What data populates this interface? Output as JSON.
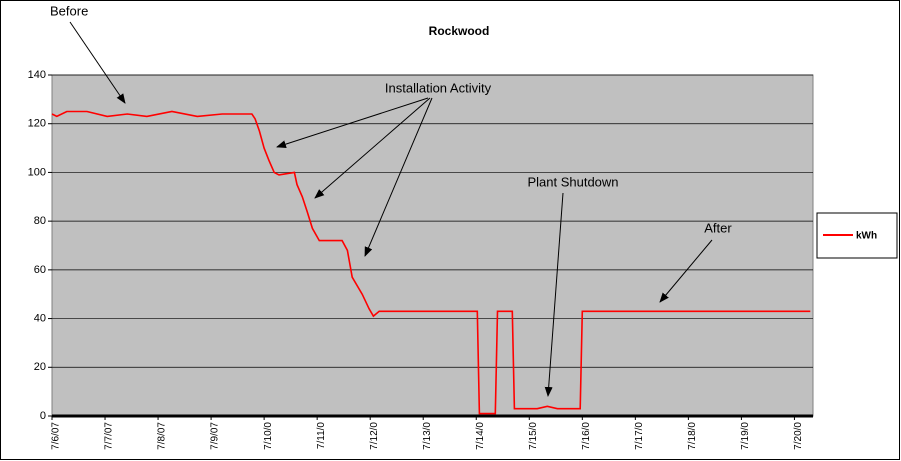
{
  "chart_data": {
    "type": "line",
    "title": "Rockwood",
    "annotations": [
      "Before",
      "Installation Activity",
      "Plant Shutdown",
      "After"
    ],
    "x": [
      0,
      0.09,
      0.28,
      0.66,
      1.04,
      1.42,
      1.79,
      2.26,
      2.74,
      3.21,
      3.77,
      3.83,
      3.91,
      4.0,
      4.09,
      4.19,
      4.28,
      4.57,
      4.62,
      4.72,
      4.81,
      4.91,
      5.04,
      5.47,
      5.57,
      5.66,
      5.85,
      5.98,
      6.06,
      6.17,
      8.02,
      8.06,
      8.36,
      8.4,
      8.68,
      8.72,
      9.15,
      9.34,
      9.53,
      9.96,
      10.0,
      14.3
    ],
    "series": [
      {
        "name": "kWh",
        "color": "#ff0000",
        "values": [
          124,
          123,
          125,
          125,
          123,
          124,
          123,
          125,
          123,
          124,
          124,
          122,
          117,
          110,
          105,
          100,
          99,
          100,
          95,
          90,
          84,
          77,
          72,
          72,
          68,
          57,
          50,
          44,
          41,
          43,
          43,
          1,
          1,
          43,
          43,
          3,
          3,
          4,
          3,
          3,
          43,
          43
        ]
      }
    ],
    "xlim": [
      0,
      14.35
    ],
    "xticks": [
      {
        "value": 0,
        "label": "7/6/07"
      },
      {
        "value": 1,
        "label": "7/7/07"
      },
      {
        "value": 2,
        "label": "7/8/07"
      },
      {
        "value": 3,
        "label": "7/9/07"
      },
      {
        "value": 4,
        "label": "7/10/0"
      },
      {
        "value": 5,
        "label": "7/11/0"
      },
      {
        "value": 6,
        "label": "7/12/0"
      },
      {
        "value": 7,
        "label": "7/13/0"
      },
      {
        "value": 8,
        "label": "7/14/0"
      },
      {
        "value": 9,
        "label": "7/15/0"
      },
      {
        "value": 10,
        "label": "7/16/0"
      },
      {
        "value": 11,
        "label": "7/17/0"
      },
      {
        "value": 12,
        "label": "7/18/0"
      },
      {
        "value": 13,
        "label": "7/19/0"
      },
      {
        "value": 14,
        "label": "7/20/0"
      }
    ],
    "ylim": [
      0,
      140
    ],
    "yticks": [
      0,
      20,
      40,
      60,
      80,
      100,
      120,
      140
    ],
    "grid": true,
    "legend": "right"
  }
}
